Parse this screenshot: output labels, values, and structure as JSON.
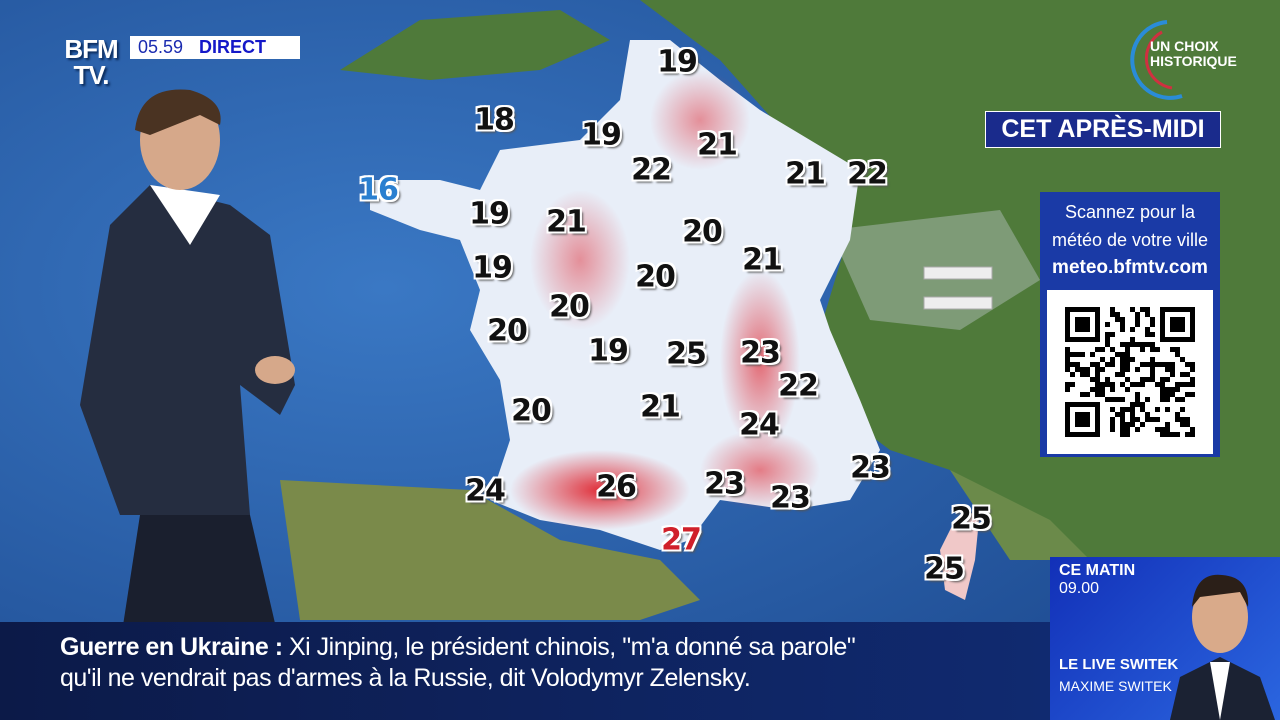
{
  "channel": {
    "logo": "BFM TV.",
    "time": "05.59",
    "live_label": "DIRECT"
  },
  "badge": {
    "text_line1": "UN CHOIX",
    "text_line2": "HISTORIQUE"
  },
  "forecast_title": "CET APRÈS-MIDI",
  "qr_panel": {
    "line1": "Scannez pour la",
    "line2": "météo de votre ville",
    "url": "meteo.bfmtv.com"
  },
  "temperatures": [
    {
      "value": "19"
    },
    {
      "value": "18"
    },
    {
      "value": "19"
    },
    {
      "value": "21"
    },
    {
      "value": "22"
    },
    {
      "value": "21"
    },
    {
      "value": "22"
    },
    {
      "value": "16",
      "class": "cold"
    },
    {
      "value": "19"
    },
    {
      "value": "21"
    },
    {
      "value": "20"
    },
    {
      "value": "21"
    },
    {
      "value": "19"
    },
    {
      "value": "20"
    },
    {
      "value": "20"
    },
    {
      "value": "20"
    },
    {
      "value": "19"
    },
    {
      "value": "25"
    },
    {
      "value": "23"
    },
    {
      "value": "22"
    },
    {
      "value": "20"
    },
    {
      "value": "21"
    },
    {
      "value": "24"
    },
    {
      "value": "23"
    },
    {
      "value": "24"
    },
    {
      "value": "26"
    },
    {
      "value": "23"
    },
    {
      "value": "23"
    },
    {
      "value": "27",
      "class": "hot"
    },
    {
      "value": "25"
    },
    {
      "value": "25"
    }
  ],
  "ticker": {
    "topic": "Guerre en Ukraine",
    "separator": ":",
    "line1": "Xi Jinping, le président chinois, \"m'a donné sa parole\"",
    "line2": "qu'il ne vendrait pas d'armes à la Russie, dit Volodymyr Zelensky."
  },
  "promo": {
    "when": "CE MATIN",
    "time": "09.00",
    "show": "LE LIVE SWITEK",
    "host": "MAXIME SWITEK"
  },
  "colors": {
    "sea": "#2a5fa8",
    "land": "#4f7a3a",
    "brand_blue": "#1a2b8c",
    "hot": "#d0202a",
    "cold": "#2a7fd0"
  }
}
